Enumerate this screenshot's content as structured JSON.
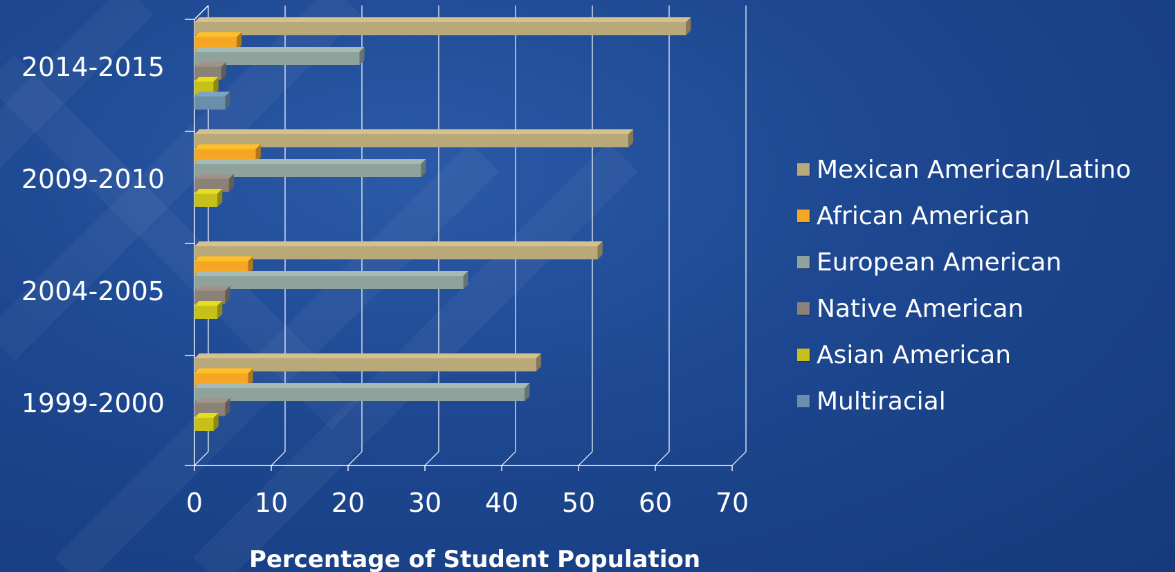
{
  "chart_data": {
    "type": "bar",
    "orientation": "horizontal",
    "style": "3d",
    "categories": [
      "2014-2015",
      "2009-2010",
      "2004-2005",
      "1999-2000"
    ],
    "series": [
      {
        "name": "Mexican American/Latino",
        "color": "#b9a87a",
        "values": [
          64,
          56.5,
          52.5,
          44.5
        ]
      },
      {
        "name": "African American",
        "color": "#f5a623",
        "values": [
          5.5,
          8,
          7,
          7
        ]
      },
      {
        "name": "European American",
        "color": "#8fa39c",
        "values": [
          21.5,
          29.5,
          35,
          43
        ]
      },
      {
        "name": "Native American",
        "color": "#8a8177",
        "values": [
          3.5,
          4.5,
          4,
          4
        ]
      },
      {
        "name": "Asian American",
        "color": "#c8c01a",
        "values": [
          2.5,
          3,
          3,
          2.5
        ]
      },
      {
        "name": "Multiracial",
        "color": "#6b8eaa",
        "values": [
          4,
          0,
          0,
          0
        ]
      }
    ],
    "xlim": [
      0,
      70
    ],
    "xticks": [
      "0",
      "10",
      "20",
      "30",
      "40",
      "50",
      "60",
      "70"
    ],
    "xlabel": "Percentage of Student Population",
    "ylabel": "",
    "grid": true,
    "legend_position": "right"
  }
}
